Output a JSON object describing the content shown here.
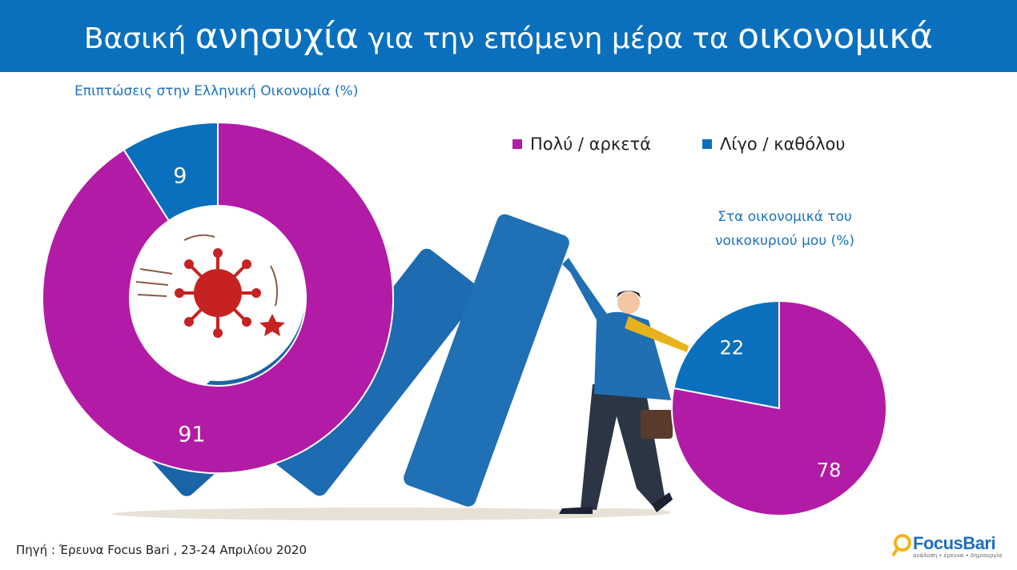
{
  "header": {
    "title_part1": "Βασική ",
    "title_big1": "ανησυχία",
    "title_part2": " για την επόμενη μέρα τα ",
    "title_big2": "οικονομικά"
  },
  "legend": {
    "items": [
      {
        "label": "Πολύ / αρκετά",
        "color": "#b21ba5"
      },
      {
        "label": "Λίγο / καθόλου",
        "color": "#0a70bd"
      }
    ]
  },
  "chart_data": [
    {
      "type": "pie",
      "variant": "donut",
      "title": "Επιπτώσεις στην Ελληνική Οικονομία (%)",
      "series": [
        {
          "name": "Πολύ / αρκετά",
          "value": 91,
          "label": "91",
          "color": "#b21ba5"
        },
        {
          "name": "Λίγο / καθόλου",
          "value": 9,
          "label": "9",
          "color": "#0a70bd"
        }
      ]
    },
    {
      "type": "pie",
      "title_line1": "Στα οικονομικά του",
      "title_line2": "νοικοκυριού μου (%)",
      "series": [
        {
          "name": "Πολύ / αρκετά",
          "value": 78,
          "label": "78",
          "color": "#b21ba5"
        },
        {
          "name": "Λίγο / καθόλου",
          "value": 22,
          "label": "22",
          "color": "#0a70bd"
        }
      ]
    }
  ],
  "footer": {
    "source": "Πηγή :  Έρευνα Focus Bari , 23-24 Απριλίου 2020",
    "logo_text": "FocusBari",
    "logo_tagline": "ανάλυση • έρευνα • δημιουργία"
  },
  "illustration": {
    "icon": "falling-dominoes-businessman-icon",
    "center_icon": "coronavirus-icon"
  }
}
